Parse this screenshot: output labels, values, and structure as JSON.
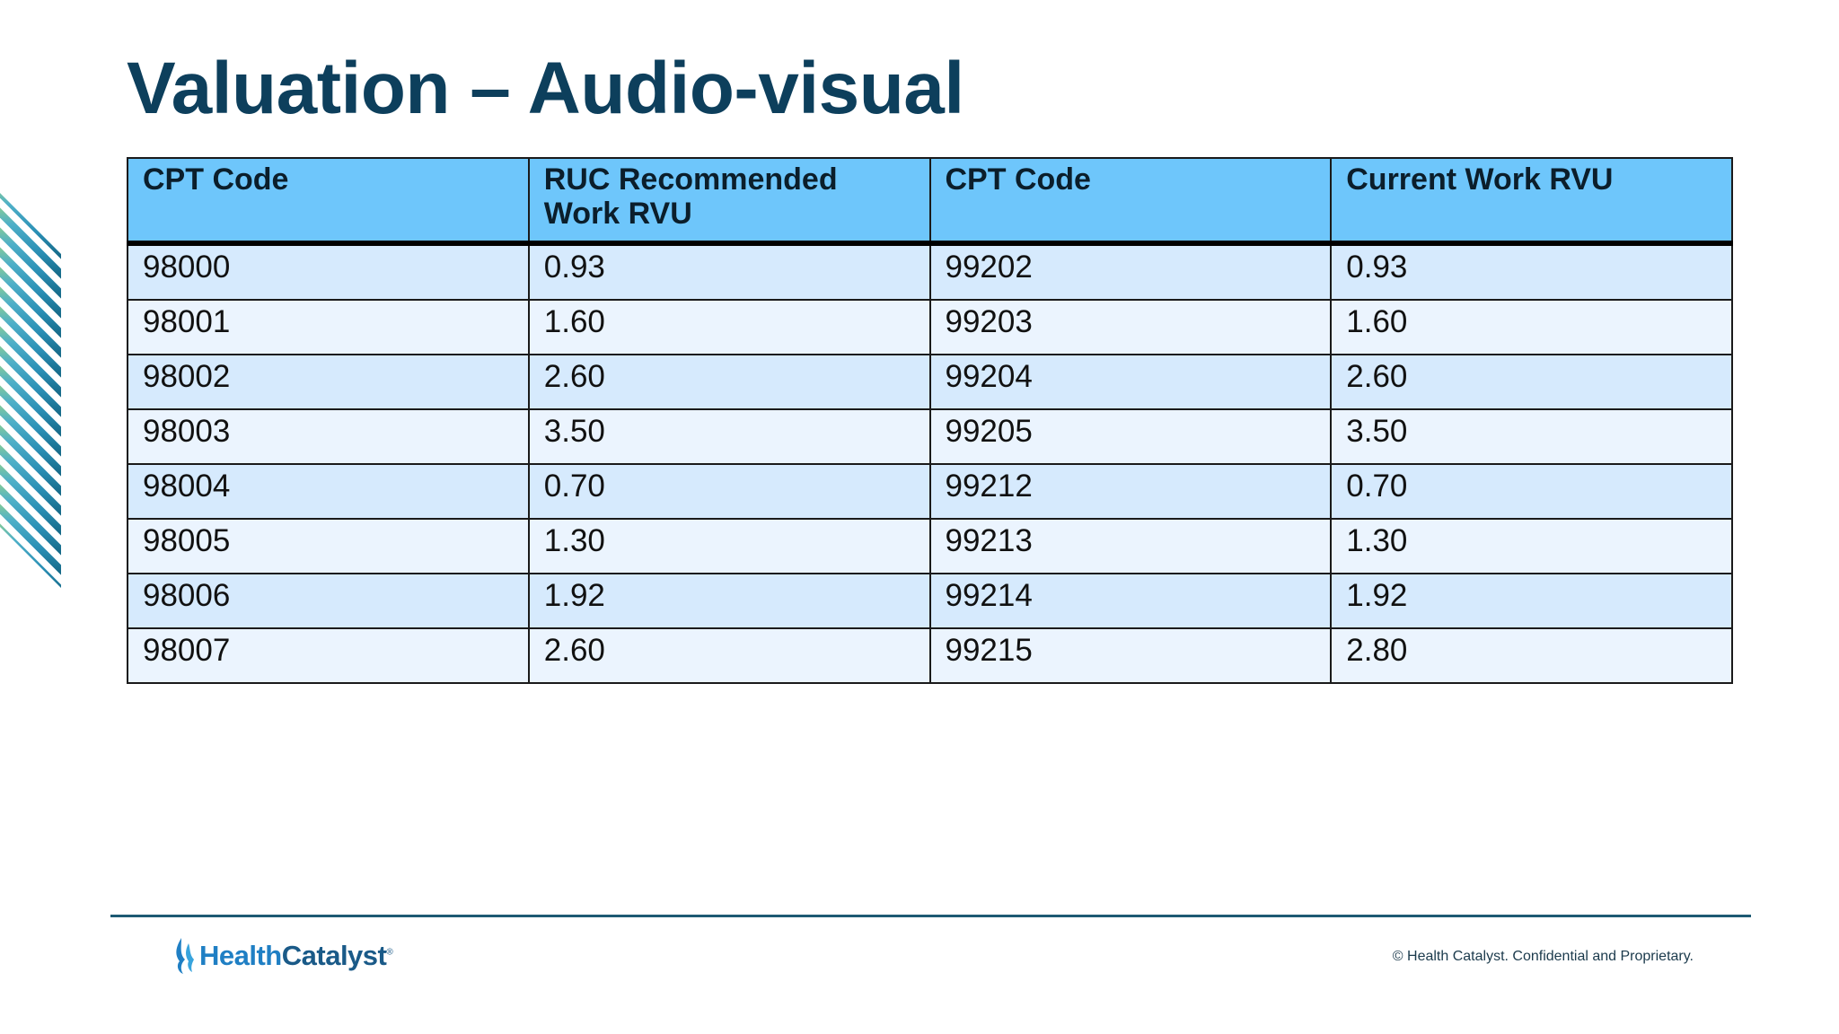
{
  "slide": {
    "title": "Valuation – Audio-visual"
  },
  "table": {
    "headers": [
      "CPT Code",
      "RUC Recommended Work RVU",
      "CPT Code",
      "Current Work RVU"
    ],
    "rows": [
      [
        "98000",
        "0.93",
        "99202",
        "0.93"
      ],
      [
        "98001",
        "1.60",
        "99203",
        "1.60"
      ],
      [
        "98002",
        "2.60",
        "99204",
        "2.60"
      ],
      [
        "98003",
        "3.50",
        "99205",
        "3.50"
      ],
      [
        "98004",
        "0.70",
        "99212",
        "0.70"
      ],
      [
        "98005",
        "1.30",
        "99213",
        "1.30"
      ],
      [
        "98006",
        "1.92",
        "99214",
        "1.92"
      ],
      [
        "98007",
        "2.60",
        "99215",
        "2.80"
      ]
    ]
  },
  "footer": {
    "logo_part1": "Health",
    "logo_part2": "Catalyst",
    "logo_mark": "®",
    "copyright": "© Health Catalyst. Confidential and Proprietary."
  },
  "colors": {
    "title": "#0d3f5c",
    "header_bg": "#6ec6fb",
    "row_odd": "#d6eafd",
    "row_even": "#ebf4fe",
    "rule": "#1d5a73",
    "brand": "#1f7fc4"
  },
  "icons": {
    "decor": "diagonal-stripes-icon",
    "logo": "flame-logo-icon"
  }
}
